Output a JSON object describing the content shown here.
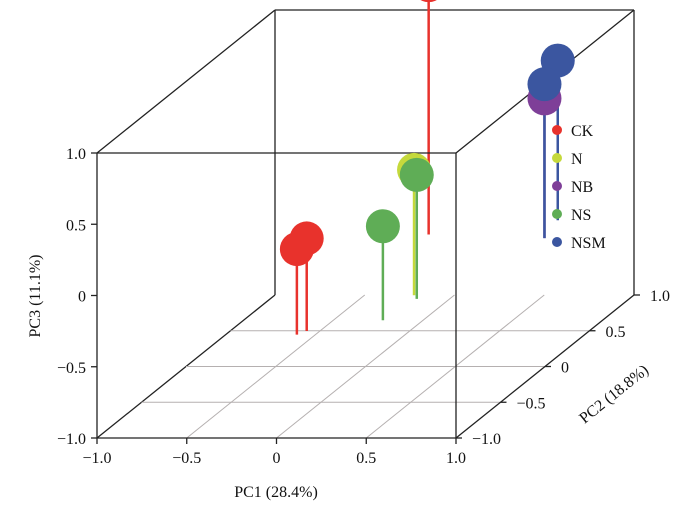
{
  "chart_data": {
    "type": "scatter3d",
    "xlabel": "PC1 (28.4%)",
    "ylabel": "PC2 (18.8%)",
    "zlabel": "PC3 (11.1%)",
    "xlim": [
      -1.0,
      1.0
    ],
    "ylim": [
      -1.0,
      1.0
    ],
    "zlim": [
      -1.0,
      1.0
    ],
    "x_ticks": [
      "−1.0",
      "−0.5",
      "0",
      "0.5",
      "1.0"
    ],
    "y_ticks": [
      "−1.0",
      "−0.5",
      "0",
      "0.5",
      "1.0"
    ],
    "z_ticks": [
      "−1.0",
      "−0.5",
      "0",
      "0.5",
      "1.0"
    ],
    "legend_position": "right",
    "series": [
      {
        "name": "CK",
        "color": "#e8322c",
        "points": [
          {
            "x": -0.02,
            "y": 0.75,
            "z": 1.3
          },
          {
            "x": -0.03,
            "y": -0.6,
            "z": 0.2
          },
          {
            "x": -0.06,
            "y": -0.65,
            "z": 0.15
          }
        ]
      },
      {
        "name": "N",
        "color": "#c5d93c",
        "points": [
          {
            "x": 0.32,
            "y": -0.1,
            "z": 0.43
          }
        ]
      },
      {
        "name": "NB",
        "color": "#7e3f98",
        "points": [
          {
            "x": 0.65,
            "y": 0.7,
            "z": 0.53
          }
        ]
      },
      {
        "name": "NS",
        "color": "#5fad56",
        "points": [
          {
            "x": 0.36,
            "y": -0.15,
            "z": 0.42
          },
          {
            "x": 0.32,
            "y": -0.45,
            "z": 0.21
          }
        ]
      },
      {
        "name": "NSM",
        "color": "#3b56a0",
        "points": [
          {
            "x": 0.6,
            "y": 0.95,
            "z": 0.67
          },
          {
            "x": 0.65,
            "y": 0.7,
            "z": 0.63
          }
        ]
      }
    ]
  }
}
